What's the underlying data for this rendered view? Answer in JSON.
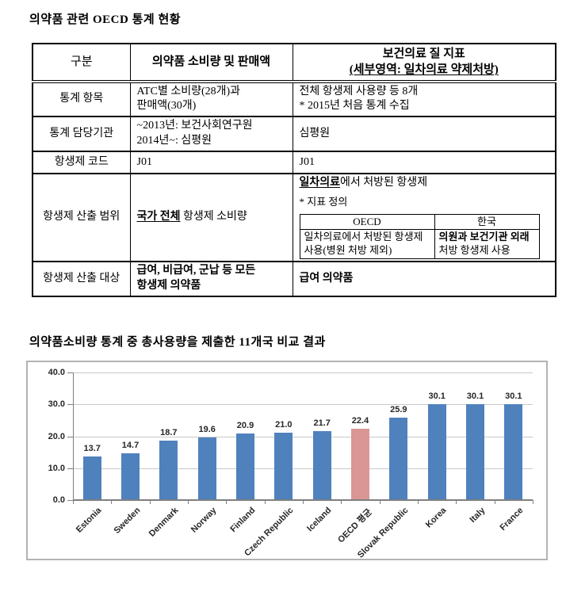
{
  "page": {
    "table_title": "의약품 관련 OECD 통계 현황",
    "chart_title": "의약품소비량 통계 중 총사용량을 제출한 11개국 비교 결과"
  },
  "table": {
    "header": {
      "col1": "구분",
      "col2": "의약품 소비량 및 판매액",
      "col3_line1": "보건의료 질 지표",
      "col3_line2": "(세부영역: 일차의료 약제처방)"
    },
    "rows": {
      "stat_items": {
        "label": "통계 항목",
        "col2_line1": "ATC별 소비량(28개)과",
        "col2_line2": "판매액(30개)",
        "col3_line1": "전체 항생제 사용량 등 8개",
        "col3_line2": "* 2015년 처음 통계 수집"
      },
      "agency": {
        "label": "통계 담당기관",
        "col2_line1": "~2013년: 보건사회연구원",
        "col2_line2": "2014년~: 심평원",
        "col3": "심평원"
      },
      "code": {
        "label": "항생제 코드",
        "col2": "J01",
        "col3": "J01"
      },
      "scope": {
        "label": "항생제 산출 범위",
        "col2_bold": "국가 전체",
        "col2_rest": " 항생제 소비량",
        "col3_bold": "일차의료",
        "col3_rest": "에서 처방된 항생제",
        "col3_note": "* 지표 정의",
        "inner": {
          "h1": "OECD",
          "h2": "한국",
          "c1": "일차의료에서 처방된 항생제 사용(병원 처방 제외)",
          "c2_bold": "의원과 보건기관 외래",
          "c2_rest": "처방 항생제 사용"
        }
      },
      "target": {
        "label": "항생제 산출 대상",
        "col2_line1": "급여, 비급여, 군납 등 모든",
        "col2_line2": "항생제 의약품",
        "col3": "급여 의약품"
      }
    }
  },
  "chart_data": {
    "type": "bar",
    "title": "의약품소비량 통계 중 총사용량을 제출한 11개국 비교 결과",
    "categories": [
      "Estonia",
      "Sweden",
      "Denmark",
      "Norway",
      "Finland",
      "Czech Republic",
      "Iceland",
      "OECD 평균",
      "Slovak Republic",
      "Korea",
      "Italy",
      "France"
    ],
    "values": [
      13.7,
      14.7,
      18.7,
      19.6,
      20.9,
      21.0,
      21.7,
      22.4,
      25.9,
      30.1,
      30.1,
      30.1
    ],
    "highlight_index": 7,
    "bar_color": "#4f81bd",
    "highlight_color": "#d99694",
    "xlabel": "",
    "ylabel": "",
    "ylim": [
      0,
      40
    ],
    "ytick_step": 10,
    "ytick_format": "one_decimal",
    "grid": true,
    "legend": "none",
    "value_labels": true
  }
}
